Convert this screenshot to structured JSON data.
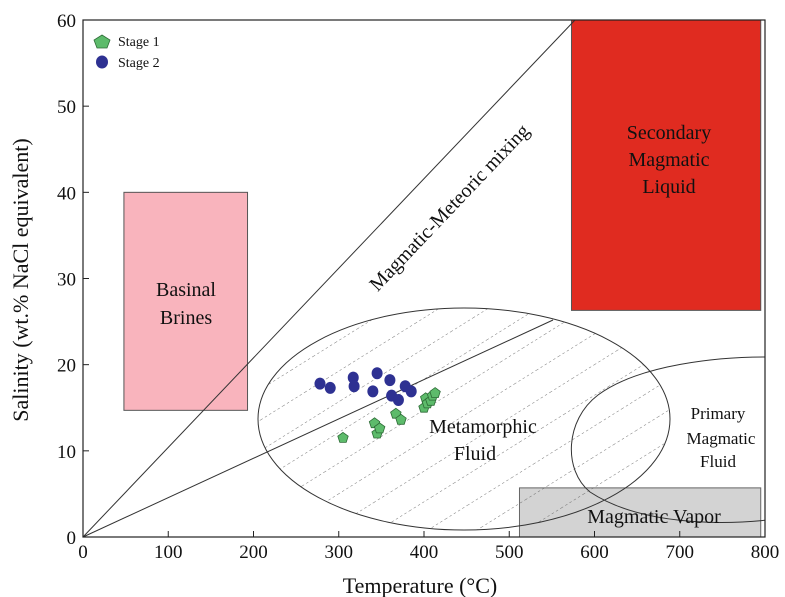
{
  "chart_data": {
    "type": "scatter",
    "xlabel": "Temperature (°C)",
    "ylabel": "Salinity (wt.% NaCl equivalent)",
    "xlim": [
      0,
      800
    ],
    "ylim": [
      0,
      60
    ],
    "xticks": [
      "0",
      "100",
      "200",
      "300",
      "400",
      "500",
      "600",
      "700",
      "800"
    ],
    "yticks": [
      "0",
      "10",
      "20",
      "30",
      "40",
      "50",
      "60"
    ],
    "grid": false,
    "legend_position": "top-left",
    "series": [
      {
        "name": "Stage 1",
        "marker": "pentagon",
        "color": "#5dbb6b",
        "points": [
          [
            305,
            11.5
          ],
          [
            342,
            13.2
          ],
          [
            345,
            12
          ],
          [
            348,
            12.6
          ],
          [
            367,
            14.3
          ],
          [
            373,
            13.6
          ],
          [
            400,
            15
          ],
          [
            402,
            16.1
          ],
          [
            404,
            15.5
          ],
          [
            408,
            15.8
          ],
          [
            410,
            16.4
          ],
          [
            413,
            16.7
          ]
        ]
      },
      {
        "name": "Stage 2",
        "marker": "circle",
        "color": "#2e3192",
        "points": [
          [
            278,
            17.8
          ],
          [
            290,
            17.3
          ],
          [
            317,
            18.5
          ],
          [
            318,
            17.5
          ],
          [
            340,
            16.9
          ],
          [
            345,
            19
          ],
          [
            360,
            18.2
          ],
          [
            362,
            16.4
          ],
          [
            370,
            15.9
          ],
          [
            378,
            17.5
          ],
          [
            385,
            16.9
          ]
        ]
      }
    ],
    "regions": [
      {
        "label_lines": [
          "Basinal",
          "Brines"
        ],
        "shape": "rect",
        "x": [
          48,
          193
        ],
        "y": [
          14.7,
          40
        ],
        "fill": "#f9b4bd"
      },
      {
        "label_lines": [
          "Secondary",
          "Magmatic",
          "Liquid"
        ],
        "shape": "rect",
        "x": [
          573,
          795
        ],
        "y": [
          26.3,
          60.5
        ],
        "fill": "#e02b20"
      },
      {
        "label_lines": [
          "Magmatic Vapor"
        ],
        "shape": "rect",
        "x": [
          512,
          795
        ],
        "y": [
          0,
          5.7
        ],
        "fill": "#d3d3d3"
      },
      {
        "label_lines": [
          "Metamorphic",
          "Fluid"
        ],
        "shape": "ellipse",
        "fill": "hatched"
      },
      {
        "label_lines": [
          "Primary",
          "Magmatic",
          "Fluid"
        ],
        "shape": "ellipse",
        "fill": "none"
      }
    ],
    "annotations": [
      {
        "text": "Magmatic-Meteoric mixing",
        "line_from": [
          0,
          0
        ],
        "line_to": [
          573,
          60
        ]
      }
    ],
    "extra_lines": [
      {
        "from": [
          0,
          0
        ],
        "to": [
          548,
          25.2
        ]
      }
    ]
  }
}
